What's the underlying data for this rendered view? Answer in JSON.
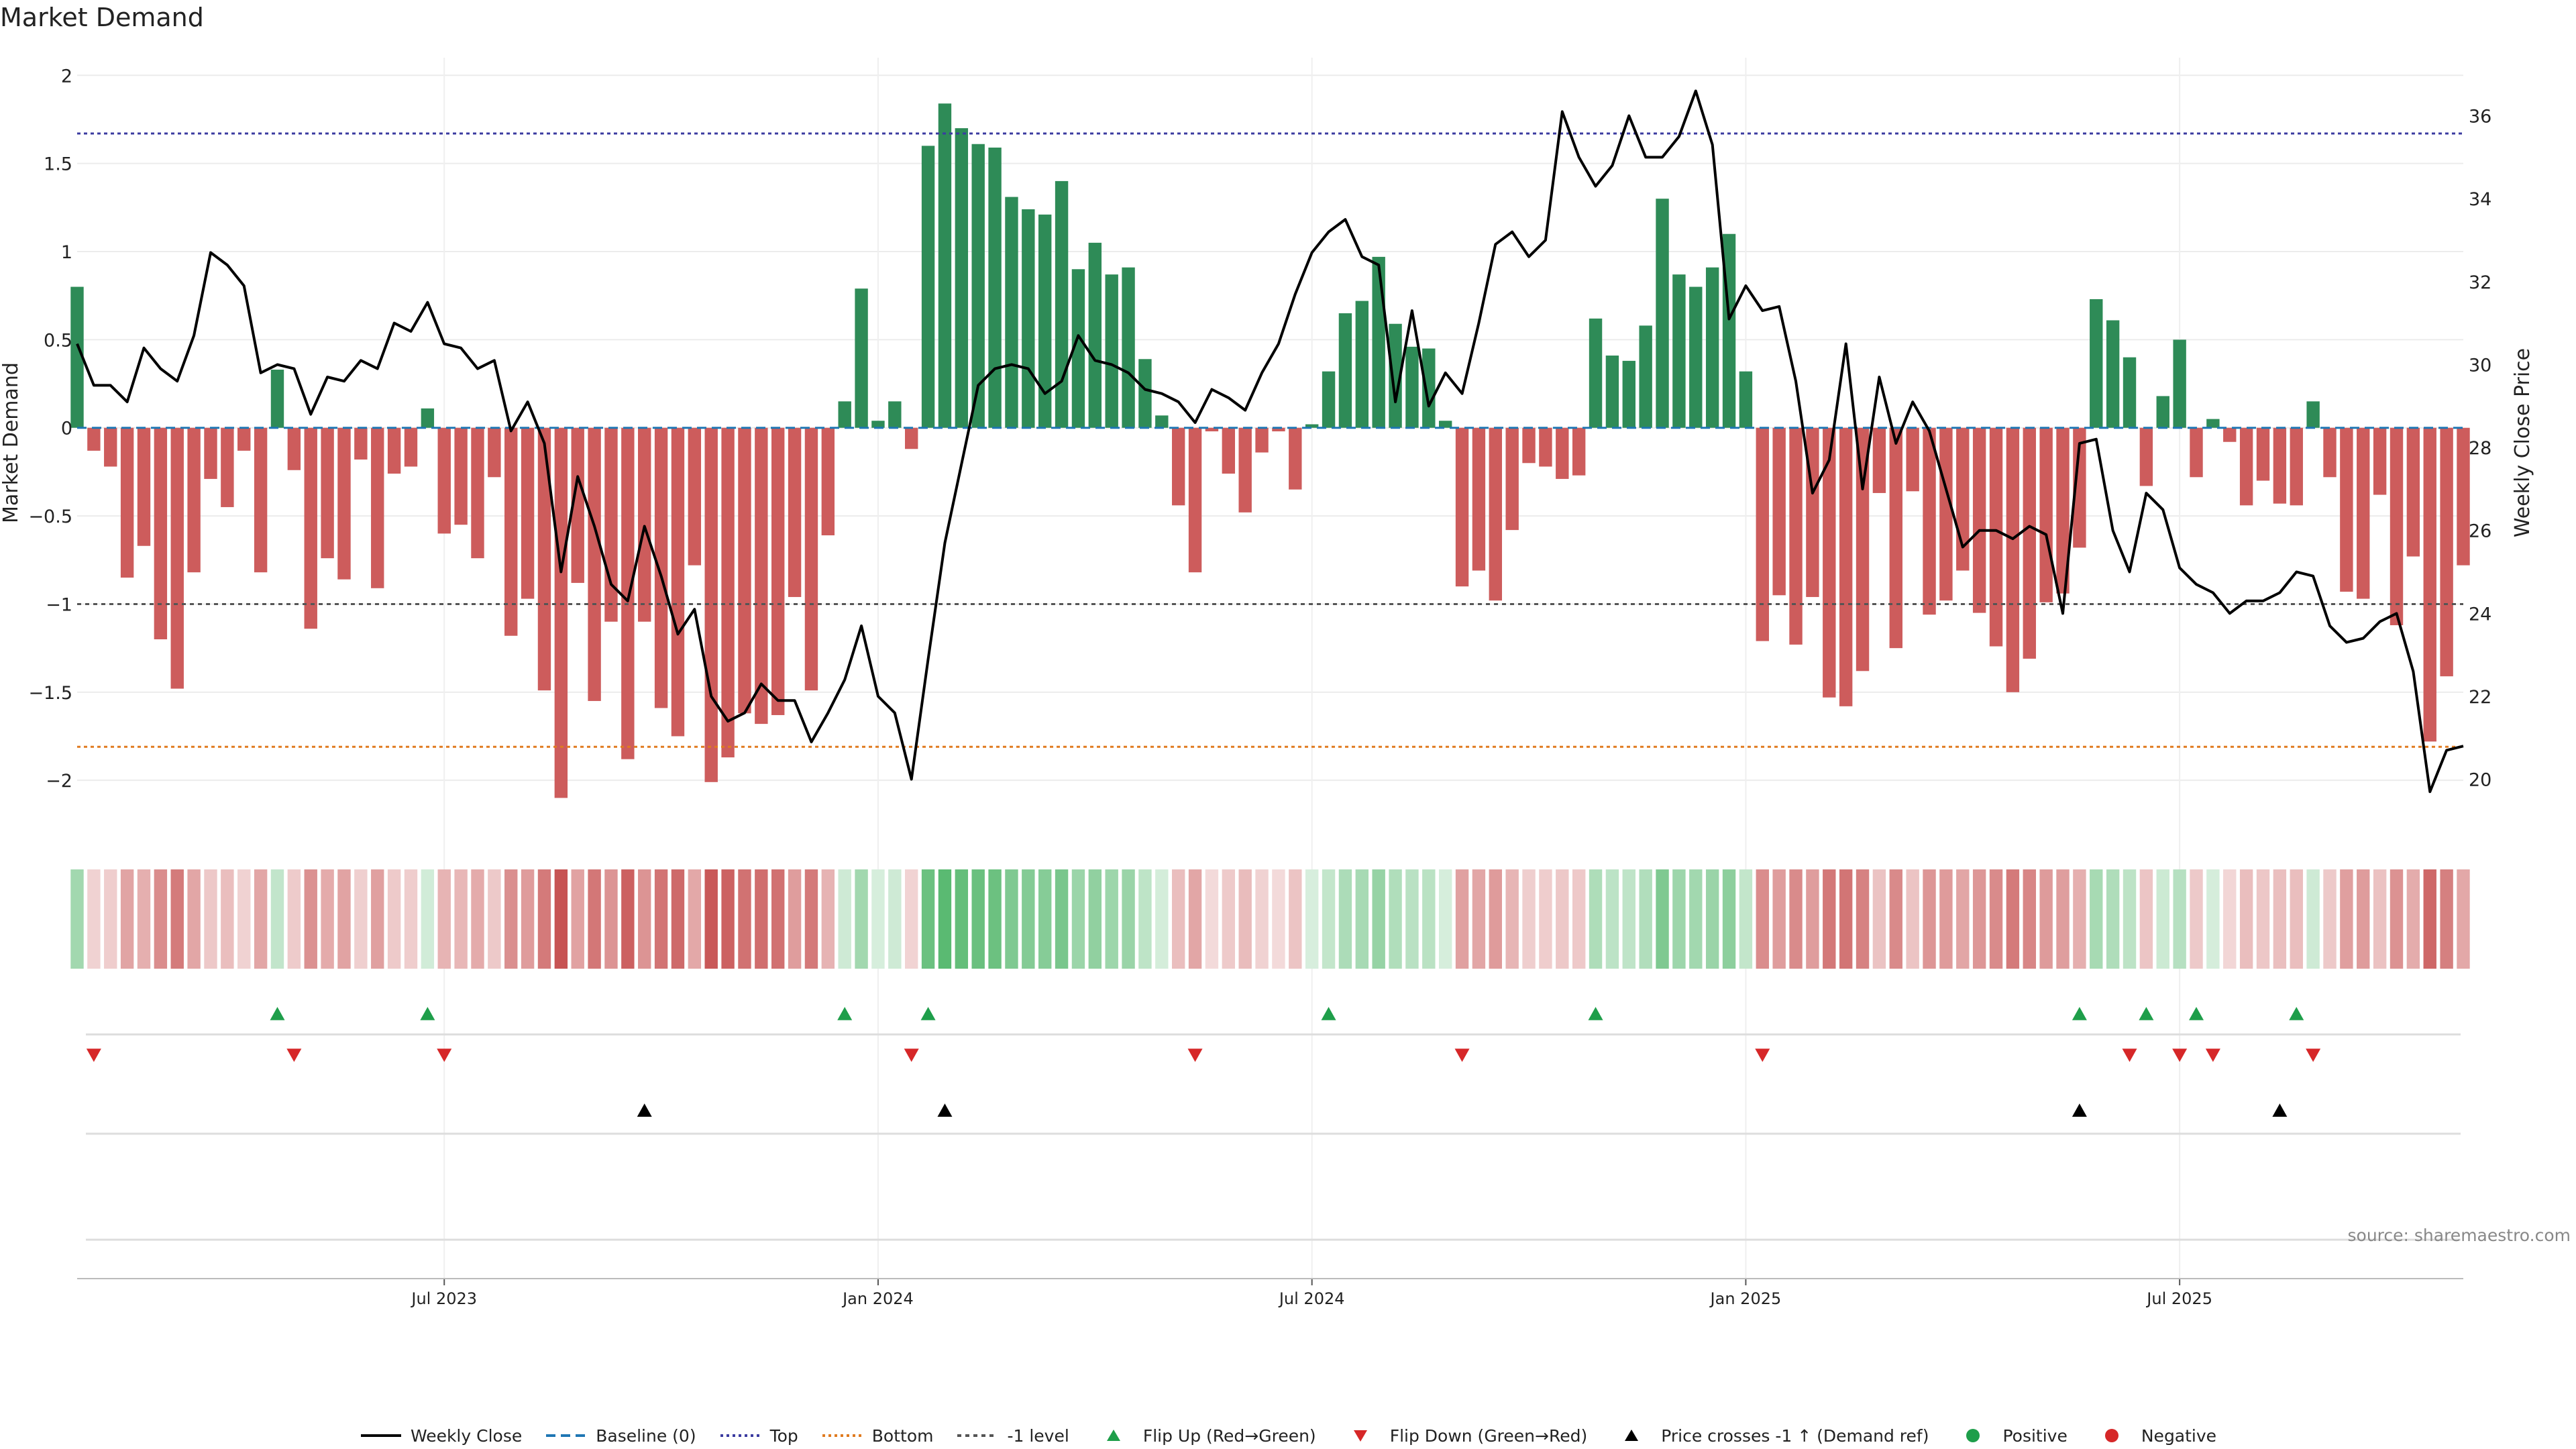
{
  "title": "Market Demand",
  "source": "source: sharemaestro.com",
  "colors": {
    "positive": "#2e8b57",
    "negative": "#cd5c5c",
    "close_line": "#000000",
    "baseline": "#1f77b4",
    "top": "#3b3ba0",
    "bottom": "#e07b20",
    "minus_one": "#555555",
    "flip_up": "#1e9e4a",
    "flip_down": "#d62728",
    "cross": "#000000"
  },
  "legend": [
    {
      "label": "Weekly Close",
      "icon": "solid-line"
    },
    {
      "label": "Baseline (0)",
      "icon": "dashed-line"
    },
    {
      "label": "Top",
      "icon": "dotted-line"
    },
    {
      "label": "Bottom",
      "icon": "dotted-line"
    },
    {
      "label": "-1 level",
      "icon": "dotted-line"
    },
    {
      "label": "Flip Up (Red→Green)",
      "icon": "triangle-up"
    },
    {
      "label": "Flip Down (Green→Red)",
      "icon": "triangle-down"
    },
    {
      "label": "Price crosses -1 ↑ (Demand ref)",
      "icon": "triangle-up"
    },
    {
      "label": "Positive",
      "icon": "circle"
    },
    {
      "label": "Negative",
      "icon": "circle"
    }
  ],
  "chart_data": {
    "type": "bar",
    "title": "Market Demand",
    "ylabel": "Market Demand",
    "y2label": "Weekly Close Price",
    "ylim": [
      -2.3,
      2.1
    ],
    "y2lim": [
      18.7,
      37.4
    ],
    "yticks": [
      2,
      1.5,
      1,
      0.5,
      0,
      -0.5,
      -1,
      -1.5,
      -2
    ],
    "yticklabels": [
      "2",
      "1.5",
      "1",
      "0.5",
      "0",
      "−0.5",
      "−1",
      "−1.5",
      "−2"
    ],
    "y2ticks": [
      20,
      22,
      24,
      26,
      28,
      30,
      32,
      34,
      36
    ],
    "xticks": [
      {
        "label": "Jul 2023",
        "week": 22
      },
      {
        "label": "Jan 2024",
        "week": 48
      },
      {
        "label": "Jul 2024",
        "week": 74
      },
      {
        "label": "Jan 2025",
        "week": 100
      },
      {
        "label": "Jul 2025",
        "week": 126
      }
    ],
    "reference_levels": {
      "baseline": 0,
      "top": 1.67,
      "bottom": -1.81,
      "minus_one": -1.0
    },
    "demand": [
      0.8,
      -0.13,
      -0.22,
      -0.85,
      -0.67,
      -1.2,
      -1.48,
      -0.82,
      -0.29,
      -0.45,
      -0.13,
      -0.82,
      0.33,
      -0.24,
      -1.14,
      -0.74,
      -0.86,
      -0.18,
      -0.91,
      -0.26,
      -0.22,
      0.11,
      -0.6,
      -0.55,
      -0.74,
      -0.28,
      -1.18,
      -0.97,
      -1.49,
      -2.1,
      -0.88,
      -1.55,
      -1.1,
      -1.88,
      -1.1,
      -1.59,
      -1.75,
      -0.78,
      -2.01,
      -1.87,
      -1.62,
      -1.68,
      -1.63,
      -0.96,
      -1.49,
      -0.61,
      0.15,
      0.79,
      0.04,
      0.15,
      -0.12,
      1.6,
      1.84,
      1.7,
      1.61,
      1.59,
      1.31,
      1.24,
      1.21,
      1.4,
      0.9,
      1.05,
      0.87,
      0.91,
      0.39,
      0.07,
      -0.44,
      -0.82,
      -0.02,
      -0.26,
      -0.48,
      -0.14,
      -0.02,
      -0.35,
      0.02,
      0.32,
      0.65,
      0.72,
      0.97,
      0.59,
      0.46,
      0.45,
      0.04,
      -0.9,
      -0.81,
      -0.98,
      -0.58,
      -0.2,
      -0.22,
      -0.29,
      -0.27,
      0.62,
      0.41,
      0.38,
      0.58,
      1.3,
      0.87,
      0.8,
      0.91,
      1.1,
      0.32,
      -1.21,
      -0.95,
      -1.23,
      -0.96,
      -1.53,
      -1.58,
      -1.38,
      -0.37,
      -1.25,
      -0.36,
      -1.06,
      -0.98,
      -0.81,
      -1.05,
      -1.24,
      -1.5,
      -1.31,
      -0.99,
      -0.94,
      -0.68,
      0.73,
      0.61,
      0.4,
      -0.33,
      0.18,
      0.5,
      -0.28,
      0.05,
      -0.08,
      -0.44,
      -0.3,
      -0.43,
      -0.44,
      0.15,
      -0.28,
      -0.93,
      -0.97,
      -0.38,
      -1.12,
      -0.73,
      -1.78,
      -1.41,
      -0.78
    ],
    "weekly_close": [
      30.5,
      29.5,
      29.5,
      29.1,
      30.4,
      29.9,
      29.6,
      30.7,
      32.7,
      32.4,
      31.9,
      29.8,
      30.0,
      29.9,
      28.8,
      29.7,
      29.6,
      30.1,
      29.9,
      31.0,
      30.8,
      31.5,
      30.5,
      30.4,
      29.9,
      30.1,
      28.4,
      29.1,
      28.1,
      25.0,
      27.3,
      26.1,
      24.7,
      24.3,
      26.1,
      24.9,
      23.5,
      24.1,
      22.0,
      21.4,
      21.6,
      22.3,
      21.9,
      21.9,
      20.9,
      21.6,
      22.4,
      23.7,
      22.0,
      21.6,
      20.0,
      22.9,
      25.7,
      27.6,
      29.5,
      29.9,
      30.0,
      29.9,
      29.3,
      29.6,
      30.7,
      30.1,
      30.0,
      29.8,
      29.4,
      29.3,
      29.1,
      28.6,
      29.4,
      29.2,
      28.9,
      29.8,
      30.5,
      31.7,
      32.7,
      33.2,
      33.5,
      32.6,
      32.4,
      29.1,
      31.3,
      29.0,
      29.8,
      29.3,
      31.0,
      32.9,
      33.2,
      32.6,
      33.0,
      36.1,
      35.0,
      34.3,
      34.8,
      36.0,
      35.0,
      35.0,
      35.5,
      36.6,
      35.3,
      31.1,
      31.9,
      31.3,
      31.4,
      29.6,
      26.9,
      27.7,
      30.5,
      27.0,
      29.7,
      28.1,
      29.1,
      28.4,
      27.0,
      25.6,
      26.0,
      26.0,
      25.8,
      26.1,
      25.9,
      24.0,
      28.1,
      28.2,
      26.0,
      25.0,
      26.9,
      26.5,
      25.1,
      24.7,
      24.5,
      24.0,
      24.3,
      24.3,
      24.5,
      25.0,
      24.9,
      23.7,
      23.3,
      23.4,
      23.8,
      24.0,
      22.6,
      19.7,
      20.7,
      20.8
    ],
    "heat_strip": {
      "description": "per-week color intensity mirrors demand sign and magnitude"
    },
    "flip_up_weeks": [
      12,
      21,
      46,
      51,
      75,
      91,
      120,
      124,
      127,
      133
    ],
    "flip_down_weeks": [
      1,
      13,
      22,
      50,
      67,
      83,
      101,
      123,
      126,
      128,
      134
    ],
    "price_cross_weeks": [
      34,
      52,
      120,
      132
    ]
  }
}
